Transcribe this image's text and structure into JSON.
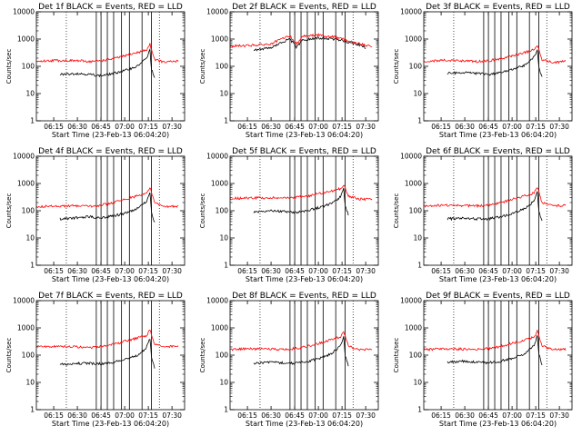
{
  "x_tick_labels": [
    "06:15",
    "06:30",
    "06:45",
    "07:00",
    "07:15",
    "07:30"
  ],
  "y_tick_labels": [
    "1",
    "10",
    "100",
    "1000",
    "10000"
  ],
  "ylabel": "Counts/sec",
  "xlabel": "Start Time (23-Feb-13 06:04:20)",
  "colors": {
    "events": "#000000",
    "lld": "#ff0000"
  },
  "chart_data": [
    {
      "type": "line",
      "title": "Det 1f BLACK = Events, RED = LLD",
      "xlabel": "Start Time (23-Feb-13 06:04:20)",
      "ylabel": "Counts/sec",
      "xlim": [
        "06:04",
        "07:38"
      ],
      "ylim": [
        1,
        10000
      ],
      "yscale": "log",
      "dotted_lines": [
        "06:23",
        "07:22"
      ],
      "vertical_lines": [
        "06:42",
        "06:45",
        "06:49",
        "06:53",
        "06:58",
        "07:03",
        "07:11",
        "07:17"
      ],
      "series": [
        {
          "name": "Events",
          "color": "#000000",
          "time": [
            "06:19",
            "06:30",
            "06:38",
            "06:45",
            "06:53",
            "07:00",
            "07:08",
            "07:12",
            "07:14",
            "07:16",
            "07:17",
            "07:19"
          ],
          "values": [
            50,
            55,
            50,
            45,
            55,
            70,
            100,
            160,
            200,
            400,
            80,
            35
          ]
        },
        {
          "name": "LLD",
          "color": "#ff0000",
          "time": [
            "06:04",
            "06:15",
            "06:30",
            "06:38",
            "06:45",
            "06:53",
            "07:00",
            "07:08",
            "07:14",
            "07:16",
            "07:19",
            "07:25",
            "07:34"
          ],
          "values": [
            150,
            165,
            160,
            150,
            160,
            190,
            240,
            320,
            400,
            650,
            180,
            140,
            155
          ]
        }
      ]
    },
    {
      "type": "line",
      "title": "Det 2f BLACK = Events, RED = LLD",
      "xlabel": "Start Time (23-Feb-13 06:04:20)",
      "ylabel": "Counts/sec",
      "xlim": [
        "06:04",
        "07:38"
      ],
      "ylim": [
        1,
        10000
      ],
      "yscale": "log",
      "dotted_lines": [
        "06:23",
        "07:22"
      ],
      "vertical_lines": [
        "06:42",
        "06:45",
        "06:49",
        "06:53",
        "06:58",
        "07:03",
        "07:11",
        "07:17"
      ],
      "series": [
        {
          "name": "Events",
          "color": "#000000",
          "time": [
            "06:19",
            "06:30",
            "06:38",
            "06:42",
            "06:46",
            "06:50",
            "07:00",
            "07:10",
            "07:18",
            "07:25",
            "07:30"
          ],
          "values": [
            400,
            480,
            800,
            1000,
            500,
            900,
            1100,
            1000,
            800,
            650,
            480
          ]
        },
        {
          "name": "LLD",
          "color": "#ff0000",
          "time": [
            "06:04",
            "06:15",
            "06:30",
            "06:38",
            "06:42",
            "06:46",
            "06:50",
            "07:00",
            "07:10",
            "07:18",
            "07:25",
            "07:34"
          ],
          "values": [
            550,
            580,
            650,
            1100,
            1300,
            650,
            1300,
            1400,
            1200,
            900,
            700,
            520
          ]
        }
      ]
    },
    {
      "type": "line",
      "title": "Det 3f BLACK = Events, RED = LLD",
      "xlabel": "Start Time (23-Feb-13 06:04:20)",
      "ylabel": "Counts/sec",
      "xlim": [
        "06:04",
        "07:38"
      ],
      "ylim": [
        1,
        10000
      ],
      "yscale": "log",
      "dotted_lines": [
        "06:23",
        "07:22"
      ],
      "vertical_lines": [
        "06:42",
        "06:45",
        "06:49",
        "06:53",
        "06:58",
        "07:03",
        "07:11",
        "07:17"
      ],
      "series": [
        {
          "name": "Events",
          "color": "#000000",
          "time": [
            "06:19",
            "06:30",
            "06:38",
            "06:45",
            "06:53",
            "07:00",
            "07:08",
            "07:12",
            "07:14",
            "07:16",
            "07:17",
            "07:19"
          ],
          "values": [
            55,
            60,
            55,
            50,
            60,
            75,
            110,
            170,
            220,
            420,
            90,
            40
          ]
        },
        {
          "name": "LLD",
          "color": "#ff0000",
          "time": [
            "06:04",
            "06:15",
            "06:30",
            "06:38",
            "06:45",
            "06:53",
            "07:00",
            "07:08",
            "07:14",
            "07:16",
            "07:19",
            "07:25",
            "07:34"
          ],
          "values": [
            150,
            165,
            160,
            150,
            160,
            190,
            240,
            320,
            400,
            600,
            180,
            140,
            150
          ]
        }
      ]
    },
    {
      "type": "line",
      "title": "Det 4f BLACK = Events, RED = LLD",
      "xlabel": "Start Time (23-Feb-13 06:04:20)",
      "ylabel": "Counts/sec",
      "xlim": [
        "06:04",
        "07:38"
      ],
      "ylim": [
        1,
        10000
      ],
      "yscale": "log",
      "dotted_lines": [
        "06:23",
        "07:22"
      ],
      "vertical_lines": [
        "06:42",
        "06:45",
        "06:49",
        "06:53",
        "06:58",
        "07:03",
        "07:11",
        "07:17"
      ],
      "series": [
        {
          "name": "Events",
          "color": "#000000",
          "time": [
            "06:19",
            "06:30",
            "06:38",
            "06:45",
            "06:53",
            "07:00",
            "07:08",
            "07:12",
            "07:14",
            "07:16",
            "07:17",
            "07:19"
          ],
          "values": [
            50,
            55,
            60,
            55,
            65,
            80,
            120,
            180,
            230,
            450,
            90,
            35
          ]
        },
        {
          "name": "LLD",
          "color": "#ff0000",
          "time": [
            "06:04",
            "06:15",
            "06:30",
            "06:38",
            "06:45",
            "06:53",
            "07:00",
            "07:08",
            "07:14",
            "07:16",
            "07:19",
            "07:25",
            "07:34"
          ],
          "values": [
            140,
            150,
            150,
            145,
            160,
            200,
            260,
            350,
            450,
            700,
            200,
            140,
            150
          ]
        }
      ]
    },
    {
      "type": "line",
      "title": "Det 5f BLACK = Events, RED = LLD",
      "xlabel": "Start Time (23-Feb-13 06:04:20)",
      "ylabel": "Counts/sec",
      "xlim": [
        "06:04",
        "07:38"
      ],
      "ylim": [
        1,
        10000
      ],
      "yscale": "log",
      "dotted_lines": [
        "06:23",
        "07:22"
      ],
      "vertical_lines": [
        "06:42",
        "06:45",
        "06:49",
        "06:53",
        "06:58",
        "07:03",
        "07:11",
        "07:17"
      ],
      "series": [
        {
          "name": "Events",
          "color": "#000000",
          "time": [
            "06:19",
            "06:30",
            "06:38",
            "06:45",
            "06:53",
            "07:00",
            "07:08",
            "07:12",
            "07:14",
            "07:16",
            "07:17",
            "07:19"
          ],
          "values": [
            90,
            100,
            95,
            85,
            100,
            130,
            180,
            260,
            330,
            650,
            150,
            70
          ]
        },
        {
          "name": "LLD",
          "color": "#ff0000",
          "time": [
            "06:04",
            "06:15",
            "06:30",
            "06:38",
            "06:45",
            "06:53",
            "07:00",
            "07:08",
            "07:14",
            "07:16",
            "07:19",
            "07:25",
            "07:34"
          ],
          "values": [
            280,
            290,
            300,
            290,
            300,
            340,
            420,
            520,
            650,
            900,
            350,
            270,
            260
          ]
        }
      ]
    },
    {
      "type": "line",
      "title": "Det 6f BLACK = Events, RED = LLD",
      "xlabel": "Start Time (23-Feb-13 06:04:20)",
      "ylabel": "Counts/sec",
      "xlim": [
        "06:04",
        "07:38"
      ],
      "ylim": [
        1,
        10000
      ],
      "yscale": "log",
      "dotted_lines": [
        "06:23",
        "07:22"
      ],
      "vertical_lines": [
        "06:42",
        "06:45",
        "06:49",
        "06:53",
        "06:58",
        "07:03",
        "07:11",
        "07:17"
      ],
      "series": [
        {
          "name": "Events",
          "color": "#000000",
          "time": [
            "06:19",
            "06:30",
            "06:38",
            "06:45",
            "06:53",
            "07:00",
            "07:08",
            "07:12",
            "07:14",
            "07:16",
            "07:17",
            "07:19"
          ],
          "values": [
            50,
            55,
            50,
            50,
            60,
            80,
            120,
            180,
            250,
            500,
            100,
            40
          ]
        },
        {
          "name": "LLD",
          "color": "#ff0000",
          "time": [
            "06:04",
            "06:15",
            "06:30",
            "06:38",
            "06:45",
            "06:53",
            "07:00",
            "07:08",
            "07:14",
            "07:16",
            "07:19",
            "07:25",
            "07:34"
          ],
          "values": [
            150,
            160,
            155,
            150,
            160,
            200,
            260,
            350,
            450,
            750,
            200,
            150,
            155
          ]
        }
      ]
    },
    {
      "type": "line",
      "title": "Det 7f BLACK = Events, RED = LLD",
      "xlabel": "Start Time (23-Feb-13 06:04:20)",
      "ylabel": "Counts/sec",
      "xlim": [
        "06:04",
        "07:38"
      ],
      "ylim": [
        1,
        10000
      ],
      "yscale": "log",
      "dotted_lines": [
        "06:23",
        "07:22"
      ],
      "vertical_lines": [
        "06:42",
        "06:45",
        "06:49",
        "06:53",
        "06:58",
        "07:03",
        "07:11",
        "07:17"
      ],
      "series": [
        {
          "name": "Events",
          "color": "#000000",
          "time": [
            "06:19",
            "06:30",
            "06:38",
            "06:45",
            "06:53",
            "07:00",
            "07:08",
            "07:12",
            "07:14",
            "07:16",
            "07:17",
            "07:19"
          ],
          "values": [
            45,
            50,
            50,
            48,
            55,
            70,
            100,
            150,
            200,
            420,
            90,
            35
          ]
        },
        {
          "name": "LLD",
          "color": "#ff0000",
          "time": [
            "06:04",
            "06:15",
            "06:30",
            "06:38",
            "06:45",
            "06:53",
            "07:00",
            "07:08",
            "07:14",
            "07:16",
            "07:19",
            "07:25",
            "07:34"
          ],
          "values": [
            200,
            210,
            200,
            190,
            210,
            250,
            320,
            420,
            520,
            850,
            260,
            200,
            210
          ]
        }
      ]
    },
    {
      "type": "line",
      "title": "Det 8f BLACK = Events, RED = LLD",
      "xlabel": "Start Time (23-Feb-13 06:04:20)",
      "ylabel": "Counts/sec",
      "xlim": [
        "06:04",
        "07:38"
      ],
      "ylim": [
        1,
        10000
      ],
      "yscale": "log",
      "dotted_lines": [
        "06:23",
        "07:22"
      ],
      "vertical_lines": [
        "06:42",
        "06:45",
        "06:49",
        "06:53",
        "06:58",
        "07:03",
        "07:11",
        "07:17"
      ],
      "series": [
        {
          "name": "Events",
          "color": "#000000",
          "time": [
            "06:19",
            "06:30",
            "06:38",
            "06:45",
            "06:53",
            "07:00",
            "07:08",
            "07:12",
            "07:14",
            "07:16",
            "07:17",
            "07:19"
          ],
          "values": [
            50,
            55,
            52,
            50,
            58,
            75,
            110,
            170,
            220,
            480,
            100,
            40
          ]
        },
        {
          "name": "LLD",
          "color": "#ff0000",
          "time": [
            "06:04",
            "06:15",
            "06:30",
            "06:38",
            "06:45",
            "06:53",
            "07:00",
            "07:08",
            "07:14",
            "07:16",
            "07:19",
            "07:25",
            "07:34"
          ],
          "values": [
            160,
            170,
            165,
            160,
            175,
            210,
            270,
            360,
            460,
            780,
            220,
            160,
            165
          ]
        }
      ]
    },
    {
      "type": "line",
      "title": "Det 9f BLACK = Events, RED = LLD",
      "xlabel": "Start Time (23-Feb-13 06:04:20)",
      "ylabel": "Counts/sec",
      "xlim": [
        "06:04",
        "07:38"
      ],
      "ylim": [
        1,
        10000
      ],
      "yscale": "log",
      "dotted_lines": [
        "06:23",
        "07:22"
      ],
      "vertical_lines": [
        "06:42",
        "06:45",
        "06:49",
        "06:53",
        "06:58",
        "07:03",
        "07:11",
        "07:17"
      ],
      "series": [
        {
          "name": "Events",
          "color": "#000000",
          "time": [
            "06:19",
            "06:30",
            "06:38",
            "06:45",
            "06:53",
            "07:00",
            "07:08",
            "07:12",
            "07:14",
            "07:16",
            "07:17",
            "07:19"
          ],
          "values": [
            55,
            60,
            55,
            52,
            60,
            78,
            115,
            175,
            230,
            500,
            110,
            45
          ]
        },
        {
          "name": "LLD",
          "color": "#ff0000",
          "time": [
            "06:04",
            "06:15",
            "06:30",
            "06:38",
            "06:45",
            "06:53",
            "07:00",
            "07:08",
            "07:14",
            "07:16",
            "07:19",
            "07:25",
            "07:34"
          ],
          "values": [
            160,
            170,
            165,
            160,
            175,
            210,
            270,
            360,
            460,
            780,
            220,
            160,
            160
          ]
        }
      ]
    }
  ]
}
